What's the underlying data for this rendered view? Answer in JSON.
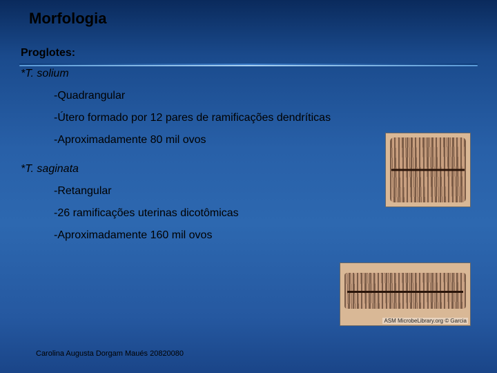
{
  "title": "Morfologia",
  "subtitle": "Proglotes:",
  "species1": {
    "name": "*T. solium",
    "bullets": [
      "-Quadrangular",
      "-Útero formado por 12 pares de ramificações dendríticas",
      "-Aproximadamente 80 mil ovos"
    ]
  },
  "species2": {
    "name": "*T. saginata",
    "bullets": [
      "-Retangular",
      "-26 ramificações uterinas dicotômicas",
      "-Aproximadamente 160 mil ovos"
    ]
  },
  "footer": "Carolina Augusta Dorgam Maués 20820080",
  "image2_caption": "ASM MicrobeLibrary.org © Garcia",
  "colors": {
    "bg_top": "#0a2a5c",
    "bg_mid": "#2d68b0",
    "bg_bottom": "#1a4588",
    "tissue": "#c9a080",
    "streak": "#3a2418"
  }
}
